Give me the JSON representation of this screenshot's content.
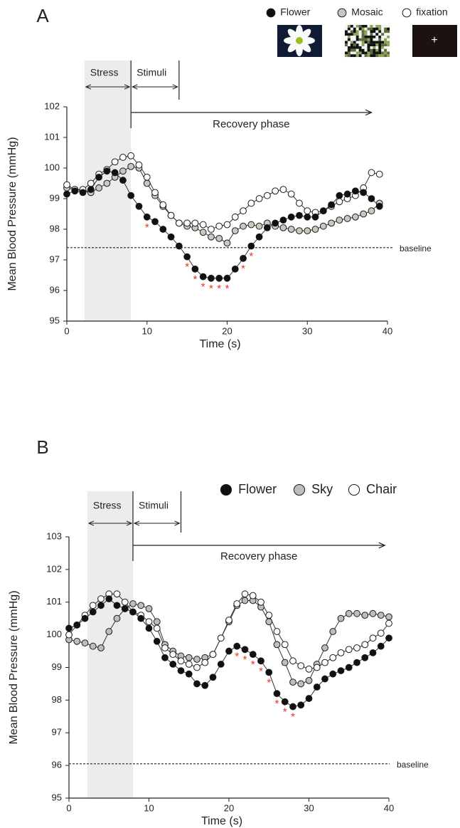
{
  "chart_data": [
    {
      "type": "line",
      "panel_label": "A",
      "x_label": "Time (s)",
      "y_label": "Mean Blood Pressure (mmHg)",
      "xlim": [
        0,
        40
      ],
      "xticks": [
        0,
        10,
        20,
        30,
        40
      ],
      "ylim": [
        95,
        102
      ],
      "yticks": [
        95,
        96,
        97,
        98,
        99,
        100,
        101,
        102
      ],
      "x": [
        0,
        1,
        2,
        3,
        4,
        5,
        6,
        7,
        8,
        9,
        10,
        11,
        12,
        13,
        14,
        15,
        16,
        17,
        18,
        19,
        20,
        21,
        22,
        23,
        24,
        25,
        26,
        27,
        28,
        29,
        30,
        31,
        32,
        33,
        34,
        35,
        36,
        37,
        38,
        39
      ],
      "series": [
        {
          "name": "Flower",
          "color": "#111111",
          "values": [
            99.15,
            99.25,
            99.2,
            99.3,
            99.7,
            99.9,
            99.85,
            99.6,
            99.1,
            98.75,
            98.4,
            98.25,
            98.0,
            97.75,
            97.45,
            97.1,
            96.7,
            96.45,
            96.4,
            96.4,
            96.4,
            96.7,
            97.05,
            97.45,
            97.75,
            98.05,
            98.2,
            98.3,
            98.4,
            98.45,
            98.4,
            98.4,
            98.6,
            98.8,
            99.1,
            99.15,
            99.25,
            99.2,
            99.0,
            98.75
          ]
        },
        {
          "name": "Mosaic",
          "color": "#c8c8be",
          "values": [
            99.35,
            99.3,
            99.25,
            99.2,
            99.35,
            99.5,
            99.7,
            99.9,
            100.05,
            100.0,
            99.5,
            99.1,
            98.75,
            98.45,
            98.2,
            98.1,
            98.05,
            97.9,
            97.75,
            97.7,
            97.55,
            97.95,
            98.1,
            98.15,
            98.1,
            98.2,
            98.1,
            98.05,
            98.0,
            97.95,
            97.95,
            98.0,
            98.1,
            98.2,
            98.3,
            98.35,
            98.4,
            98.5,
            98.6,
            98.85
          ]
        },
        {
          "name": "fixation",
          "color": "#ffffff",
          "symbol": "+",
          "values": [
            99.45,
            99.3,
            99.3,
            99.5,
            99.8,
            99.95,
            100.2,
            100.35,
            100.4,
            100.1,
            99.7,
            99.2,
            98.8,
            98.45,
            98.2,
            98.2,
            98.2,
            98.15,
            98.0,
            98.1,
            98.15,
            98.4,
            98.6,
            98.85,
            99.0,
            99.1,
            99.25,
            99.3,
            99.15,
            98.85,
            98.6,
            98.55,
            98.6,
            98.75,
            98.9,
            99.0,
            99.1,
            99.35,
            99.85,
            99.8
          ]
        }
      ],
      "baseline": {
        "label": "baseline",
        "value": 97.4
      },
      "phases": [
        {
          "label": "Stress",
          "start": 2.2,
          "end": 8
        },
        {
          "label": "Stimuli",
          "start": 8,
          "end": 14
        },
        {
          "label": "Recovery phase",
          "start": 8,
          "end": 38
        }
      ],
      "significance_marker": "*",
      "significance_color": "#e8331c",
      "significant_x": [
        10,
        15,
        16,
        17,
        18,
        19,
        20,
        22,
        23
      ]
    },
    {
      "type": "line",
      "panel_label": "B",
      "x_label": "Time (s)",
      "y_label": "Mean Blood Pressure (mmHg)",
      "xlim": [
        0,
        40
      ],
      "xticks": [
        0,
        10,
        20,
        30,
        40
      ],
      "ylim": [
        95,
        103
      ],
      "yticks": [
        95,
        96,
        97,
        98,
        99,
        100,
        101,
        102,
        103
      ],
      "x": [
        0,
        1,
        2,
        3,
        4,
        5,
        6,
        7,
        8,
        9,
        10,
        11,
        12,
        13,
        14,
        15,
        16,
        17,
        18,
        19,
        20,
        21,
        22,
        23,
        24,
        25,
        26,
        27,
        28,
        29,
        30,
        31,
        32,
        33,
        34,
        35,
        36,
        37,
        38,
        39,
        40
      ],
      "series": [
        {
          "name": "Flower",
          "color": "#111111",
          "values": [
            100.2,
            100.3,
            100.5,
            100.7,
            100.9,
            101.1,
            100.9,
            100.8,
            100.7,
            100.5,
            100.2,
            99.8,
            99.3,
            99.1,
            98.9,
            98.8,
            98.5,
            98.45,
            98.7,
            99.1,
            99.5,
            99.65,
            99.55,
            99.4,
            99.2,
            98.85,
            98.2,
            97.95,
            97.8,
            97.85,
            98.05,
            98.4,
            98.65,
            98.8,
            98.9,
            99.0,
            99.15,
            99.3,
            99.45,
            99.65,
            99.9
          ]
        },
        {
          "name": "Sky",
          "color": "#bdbdbd",
          "values": [
            99.85,
            99.8,
            99.75,
            99.65,
            99.6,
            100.1,
            100.5,
            100.8,
            100.95,
            100.9,
            100.8,
            100.4,
            99.7,
            99.5,
            99.35,
            99.3,
            99.25,
            99.3,
            99.4,
            99.9,
            100.4,
            100.9,
            101.05,
            101.05,
            100.85,
            100.4,
            99.7,
            99.15,
            98.55,
            98.5,
            98.6,
            99.1,
            99.6,
            100.1,
            100.5,
            100.65,
            100.65,
            100.6,
            100.65,
            100.6,
            100.55
          ]
        },
        {
          "name": "Chair",
          "color": "#ffffff",
          "values": [
            100.0,
            100.3,
            100.6,
            100.9,
            101.1,
            101.25,
            101.25,
            101.0,
            100.7,
            100.6,
            100.4,
            100.2,
            99.6,
            99.4,
            99.2,
            99.1,
            99.0,
            99.15,
            99.4,
            99.9,
            100.45,
            100.95,
            101.25,
            101.2,
            101.0,
            100.6,
            100.1,
            99.7,
            99.2,
            99.05,
            98.95,
            99.0,
            99.15,
            99.3,
            99.45,
            99.55,
            99.6,
            99.7,
            99.9,
            100.05,
            100.35
          ]
        }
      ],
      "baseline": {
        "label": "baseline",
        "value": 96.05
      },
      "phases": [
        {
          "label": "Stress",
          "start": 2.3,
          "end": 8
        },
        {
          "label": "Stimuli",
          "start": 8,
          "end": 14
        },
        {
          "label": "Recovery phase",
          "start": 8,
          "end": 39.5
        }
      ],
      "significance_marker": "*",
      "significance_color": "#e8331c",
      "significant_x": [
        21,
        22,
        23,
        24,
        25,
        26,
        27,
        28
      ]
    }
  ]
}
